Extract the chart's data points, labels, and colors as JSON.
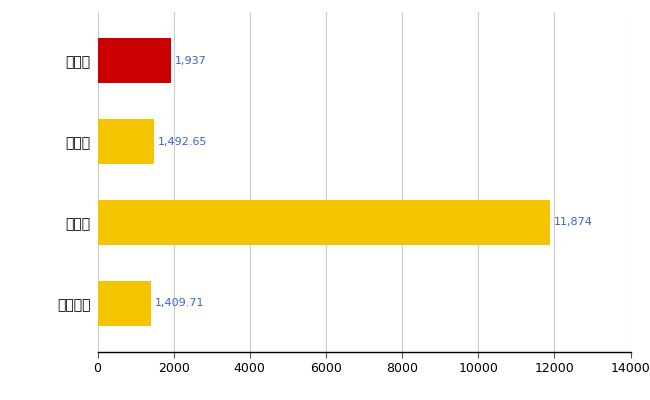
{
  "categories": [
    "稲毛区",
    "県平均",
    "県最大",
    "全国平均"
  ],
  "values": [
    1937,
    1492.65,
    11874,
    1409.71
  ],
  "bar_colors": [
    "#cc0000",
    "#f5c400",
    "#f5c400",
    "#f5c400"
  ],
  "labels": [
    "1,937",
    "1,492.65",
    "11,874",
    "1,409.71"
  ],
  "xlim": [
    0,
    14000
  ],
  "xticks": [
    0,
    2000,
    4000,
    6000,
    8000,
    10000,
    12000,
    14000
  ],
  "background_color": "#ffffff",
  "grid_color": "#cccccc",
  "label_color": "#3366cc",
  "bar_height": 0.55,
  "figsize": [
    6.5,
    4.0
  ],
  "dpi": 100
}
